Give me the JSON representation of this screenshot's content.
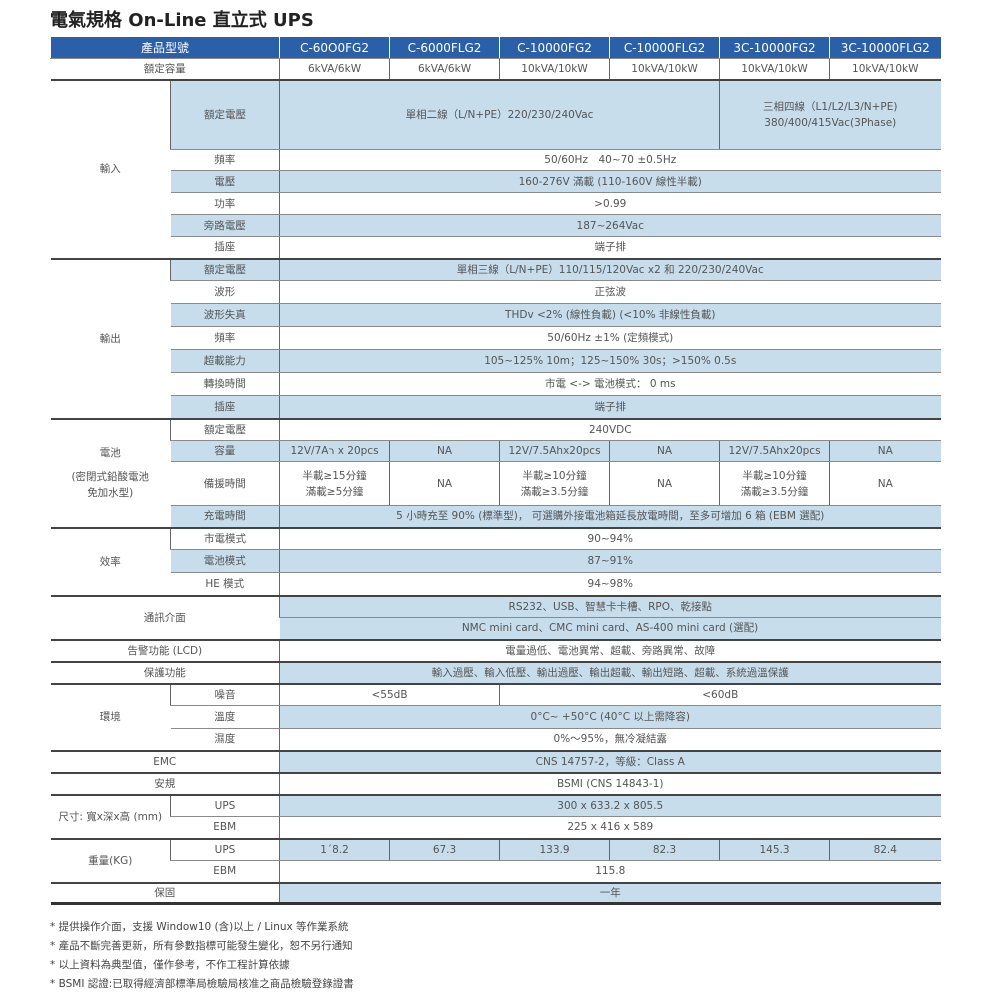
{
  "title": "電氣規格 On-Line 直立式 UPS",
  "header": {
    "label": "產品型號",
    "models": [
      "C-60O0FG2",
      "C-6000FLG2",
      "C-10000FG2",
      "C-10000FLG2",
      "3C-10000FG2",
      "3C-10000FLG2"
    ]
  },
  "capacity": {
    "label": "額定容量",
    "values": [
      "6kVA/6kW",
      "6kVA/6kW",
      "10kVA/10kW",
      "10kVA/10kW",
      "10kVA/10kW",
      "10kVA/10kW"
    ]
  },
  "input": {
    "group": "輸入",
    "rows": [
      {
        "label": "額定電壓",
        "single": "單相二線（L/N+PE）220/230/240Vac",
        "three_1": "三相四線（L1/L2/L3/N+PE)",
        "three_2": "380/400/415Vac(3Phase)"
      },
      {
        "label": "頻率",
        "value": "50/60Hz　40~70 ±0.5Hz"
      },
      {
        "label": "電壓",
        "value": "160-276V 滿載 (110-160V 線性半載)"
      },
      {
        "label": "功率",
        "value": ">0.99"
      },
      {
        "label": "旁路電壓",
        "value": "187~264Vac"
      },
      {
        "label": "插座",
        "value": "端子排"
      }
    ]
  },
  "output": {
    "group": "輸出",
    "rows": [
      {
        "label": "額定電壓",
        "value": "單相三線（L/N+PE）110/115/120Vac x2 和 220/230/240Vac"
      },
      {
        "label": "波形",
        "value": "正弦波"
      },
      {
        "label": "波形失真",
        "value": "THDv <2% (線性負載) (<10% 非線性負載)"
      },
      {
        "label": "頻率",
        "value": "50/60Hz ±1% (定頻模式)"
      },
      {
        "label": "超載能力",
        "value": "105~125% 10m；125~150% 30s；>150% 0.5s"
      },
      {
        "label": "轉換時間",
        "value": "市電 <-> 電池模式： 0 ms"
      },
      {
        "label": "插座",
        "value": "端子排"
      }
    ]
  },
  "battery": {
    "group_1": "電池",
    "group_2": "(密閉式鉛酸電池",
    "group_3": "免加水型)",
    "rated": {
      "label": "額定電壓",
      "value": "240VDC"
    },
    "capacity": {
      "label": "容量",
      "values": [
        "12V/7Aר x 20pcs",
        "NA",
        "12V/7.5Ahx20pcs",
        "NA",
        "12V/7.5Ahx20pcs",
        "NA"
      ]
    },
    "backup": {
      "label": "備援時間",
      "values": [
        [
          "半載≥15分鐘",
          "滿載≥5分鐘"
        ],
        [
          "NA"
        ],
        [
          "半載≥10分鐘",
          "滿載≥3.5分鐘"
        ],
        [
          "NA"
        ],
        [
          "半載≥10分鐘",
          "滿載≥3.5分鐘"
        ],
        [
          "NA"
        ]
      ]
    },
    "charge": {
      "label": "充電時間",
      "value": "5 小時充至 90% (標準型)， 可選購外接電池箱延長放電時間，至多可增加 6 箱 (EBM 選配)"
    }
  },
  "efficiency": {
    "group": "效率",
    "rows": [
      {
        "label": "市電模式",
        "value": "90~94%"
      },
      {
        "label": "電池模式",
        "value": "87~91%"
      },
      {
        "label": "HE 模式",
        "value": "94~98%"
      }
    ]
  },
  "comm": {
    "label": "通訊介面",
    "line1": "RS232、USB、智慧卡卡槽、RPO、乾接點",
    "line2": "NMC mini card、CMC mini card、AS-400 mini card (選配)"
  },
  "alarm": {
    "label": "告警功能 (LCD)",
    "value": "電量過低、電池異常、超載、旁路異常、故障"
  },
  "protection": {
    "label": "保護功能",
    "value": "輸入過壓、輸入低壓、輸出過壓、輸出超載、輸出短路、超載、系統過溫保護"
  },
  "environment": {
    "group": "環境",
    "noise": {
      "label": "噪音",
      "v1": "<55dB",
      "v2": "<60dB"
    },
    "temp": {
      "label": "溫度",
      "value": "0°C~ +50°C (40°C 以上需降容)"
    },
    "humidity": {
      "label": "濕度",
      "value": "0%～95%，無冷凝結露"
    }
  },
  "emc": {
    "label": "EMC",
    "value": "CNS 14757-2，等級：Class A"
  },
  "safety": {
    "label": "安規",
    "value": "BSMI (CNS 14843-1)"
  },
  "size": {
    "group": "尺寸: 寬x深x高 (mm)",
    "ups_label": "UPS",
    "ups": "300 x 633.2 x 805.5",
    "ebm_label": "EBM",
    "ebm": "225 x 416 x 589"
  },
  "weight": {
    "group": "重量(KG)",
    "ups_label": "UPS",
    "ups": [
      "1´8.2",
      "67.3",
      "133.9",
      "82.3",
      "145.3",
      "82.4"
    ],
    "ebm_label": "EBM",
    "ebm": "115.8"
  },
  "warranty": {
    "label": "保固",
    "value": "一年"
  },
  "notes": [
    "* 提供操作介面，支援 Window10 (含)以上 / Linux 等作業系統",
    "* 產品不斷完善更新，所有參數指標可能發生變化，恕不另行通知",
    "* 以上資料為典型值，僅作參考，不作工程計算依據",
    "* BSMI 認證:已取得經濟部標準局檢驗局核准之商品檢驗登錄證書"
  ],
  "colors": {
    "header": "#2b5fa8",
    "row_alt": "#c7ddec"
  }
}
